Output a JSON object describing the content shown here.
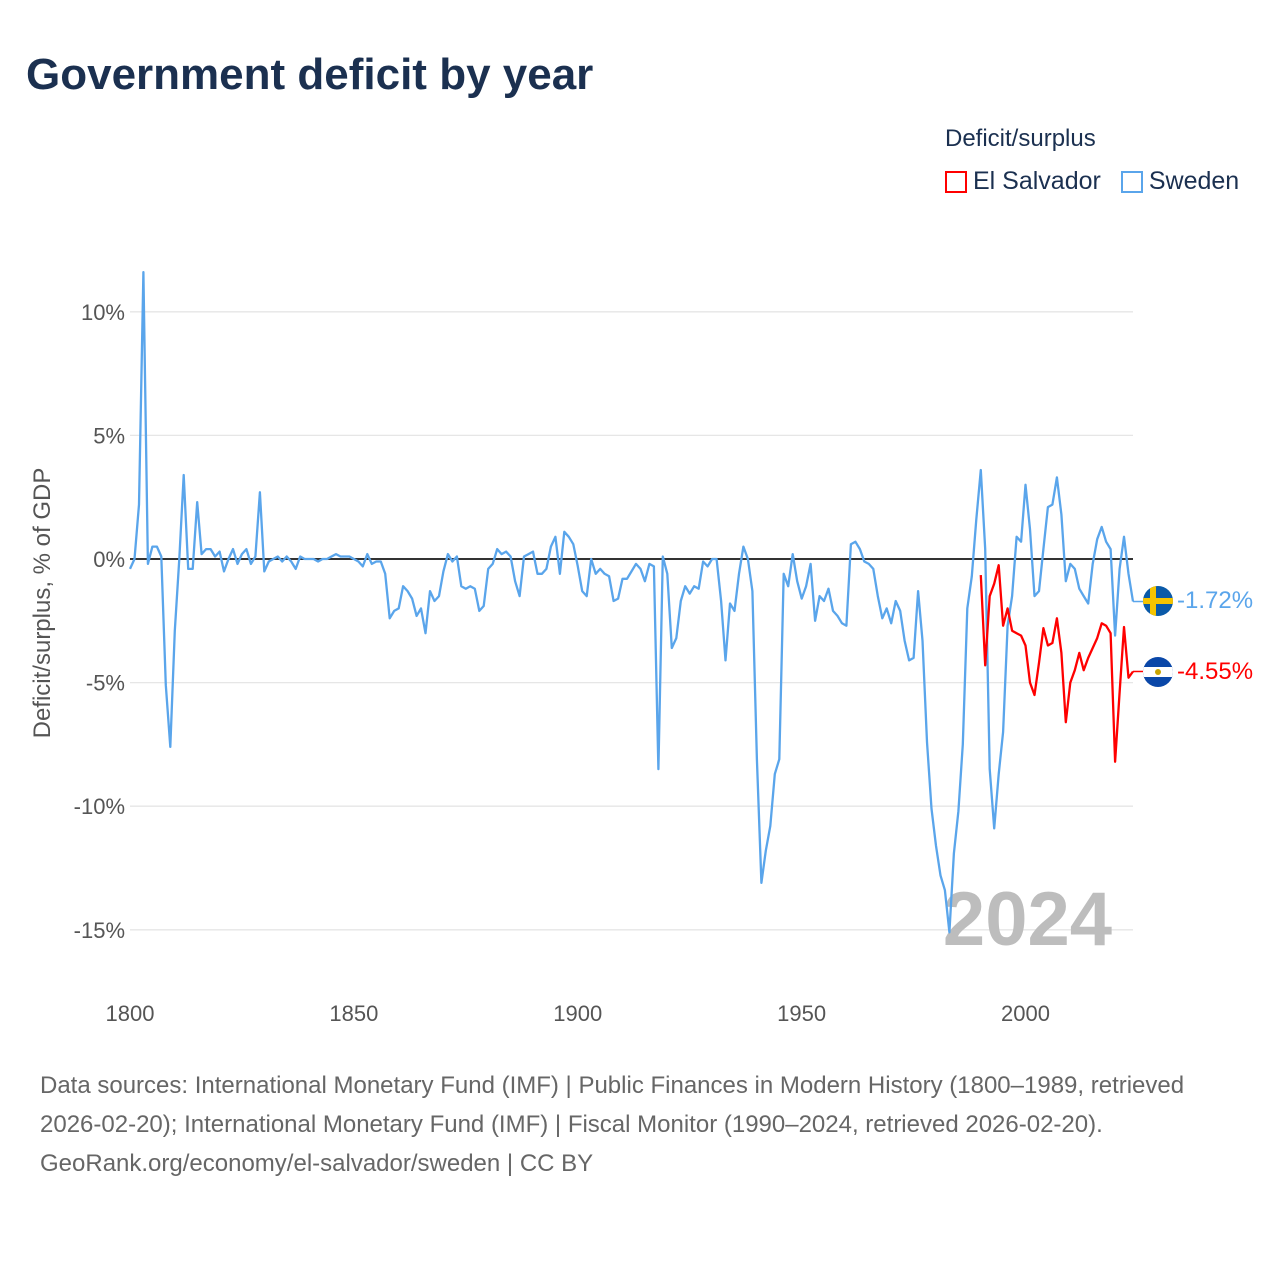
{
  "title": "Government deficit by year",
  "legend": {
    "title": "Deficit/surplus",
    "items": [
      {
        "name": "El Salvador",
        "color": "#ff0000"
      },
      {
        "name": "Sweden",
        "color": "#5aa5eb"
      }
    ]
  },
  "year_watermark": "2024",
  "end_labels": {
    "sweden": "-1.72%",
    "el_salvador": "-4.55%"
  },
  "footer": {
    "sources": "Data sources: International Monetary Fund (IMF) | Public Finances in Modern History (1800–1989, retrieved 2026-02-20); International Monetary Fund (IMF) | Fiscal Monitor (1990–2024, retrieved 2026-02-20).",
    "credit": "GeoRank.org/economy/el-salvador/sweden | CC BY"
  },
  "chart_data": {
    "type": "line",
    "title": "Government deficit by year",
    "xlabel": "",
    "ylabel": "Deficit/surplus, % of GDP",
    "xlim": [
      1800,
      2024
    ],
    "ylim": [
      -16.5,
      11.8
    ],
    "x_ticks": [
      {
        "value": 1800,
        "label": "1800"
      },
      {
        "value": 1850,
        "label": "1850"
      },
      {
        "value": 1900,
        "label": "1900"
      },
      {
        "value": 1950,
        "label": "1950"
      },
      {
        "value": 2000,
        "label": "2000"
      }
    ],
    "y_ticks": [
      {
        "value": 10,
        "label": "10%"
      },
      {
        "value": 5,
        "label": "5%"
      },
      {
        "value": 0,
        "label": "0%"
      },
      {
        "value": -5,
        "label": "-5%"
      },
      {
        "value": -10,
        "label": "-10%"
      },
      {
        "value": -15,
        "label": "-15%"
      }
    ],
    "grid": true,
    "legend_position": "top-right",
    "series": [
      {
        "name": "Sweden",
        "color": "#5aa5eb",
        "start_year": 1800,
        "end_year": 2024,
        "values": [
          -0.4,
          0,
          2.2,
          11.6,
          -0.2,
          0.5,
          0.5,
          0.1,
          -5.1,
          -7.6,
          -2.9,
          0,
          3.4,
          -0.4,
          -0.4,
          2.3,
          0.2,
          0.4,
          0.4,
          0.1,
          0.3,
          -0.5,
          0,
          0.4,
          -0.2,
          0.2,
          0.4,
          -0.2,
          0.1,
          2.7,
          -0.5,
          -0.1,
          0,
          0.1,
          -0.1,
          0.1,
          -0.1,
          -0.4,
          0.1,
          0,
          0,
          0,
          -0.1,
          0,
          0,
          0.1,
          0.2,
          0.1,
          0.1,
          0.1,
          0,
          -0.1,
          -0.3,
          0.2,
          -0.2,
          -0.1,
          -0.1,
          -0.6,
          -2.4,
          -2.1,
          -2.0,
          -1.1,
          -1.3,
          -1.6,
          -2.3,
          -2.0,
          -3.0,
          -1.3,
          -1.7,
          -1.5,
          -0.5,
          0.2,
          -0.1,
          0.1,
          -1.1,
          -1.2,
          -1.1,
          -1.2,
          -2.1,
          -1.9,
          -0.4,
          -0.2,
          0.4,
          0.2,
          0.3,
          0.1,
          -0.9,
          -1.5,
          0.1,
          0.2,
          0.3,
          -0.6,
          -0.6,
          -0.4,
          0.5,
          0.9,
          -0.6,
          1.1,
          0.9,
          0.6,
          -0.3,
          -1.3,
          -1.5,
          0,
          -0.6,
          -0.4,
          -0.6,
          -0.7,
          -1.7,
          -1.6,
          -0.8,
          -0.8,
          -0.5,
          -0.2,
          -0.4,
          -0.9,
          -0.2,
          -0.3,
          -8.5,
          0.1,
          -0.6,
          -3.6,
          -3.2,
          -1.7,
          -1.1,
          -1.4,
          -1.1,
          -1.2,
          -0.1,
          -0.3,
          0,
          0,
          -1.7,
          -4.1,
          -1.8,
          -2.1,
          -0.6,
          0.5,
          0,
          -1.3,
          -8.1,
          -13.1,
          -11.8,
          -10.8,
          -8.7,
          -8.1,
          -0.6,
          -1.1,
          0.2,
          -0.9,
          -1.6,
          -1.1,
          -0.2,
          -2.5,
          -1.5,
          -1.7,
          -1.2,
          -2.1,
          -2.3,
          -2.6,
          -2.7,
          0.6,
          0.7,
          0.4,
          -0.1,
          -0.2,
          -0.4,
          -1.5,
          -2.4,
          -2.0,
          -2.6,
          -1.7,
          -2.1,
          -3.3,
          -4.1,
          -4.0,
          -1.3,
          -3.3,
          -7.4,
          -10.1,
          -11.6,
          -12.8,
          -13.4,
          -15.1,
          -11.9,
          -10.2,
          -7.5,
          -2.0,
          -0.7,
          1.6,
          3.6,
          0.4,
          -8.5,
          -10.9,
          -8.7,
          -7.0,
          -2.7,
          -1.5,
          0.9,
          0.7,
          3.0,
          1.2,
          -1.5,
          -1.3,
          0.4,
          2.1,
          2.2,
          3.3,
          1.8,
          -0.9,
          -0.2,
          -0.4,
          -1.2,
          -1.5,
          -1.8,
          -0.2,
          0.8,
          1.3,
          0.7,
          0.4,
          -3.1,
          -0.4,
          0.9,
          -0.6,
          -1.72
        ]
      },
      {
        "name": "El Salvador",
        "color": "#ff0000",
        "start_year": 1990,
        "end_year": 2024,
        "values": [
          -0.65,
          -4.3,
          -1.5,
          -1.0,
          -0.25,
          -2.7,
          -2.0,
          -2.9,
          -3.0,
          -3.1,
          -3.5,
          -5.0,
          -5.5,
          -4.2,
          -2.8,
          -3.5,
          -3.4,
          -2.4,
          -3.8,
          -6.6,
          -5.0,
          -4.5,
          -3.8,
          -4.5,
          -4.0,
          -3.6,
          -3.2,
          -2.6,
          -2.7,
          -3.0,
          -8.2,
          -5.4,
          -2.75,
          -4.8,
          -4.55
        ]
      }
    ]
  }
}
